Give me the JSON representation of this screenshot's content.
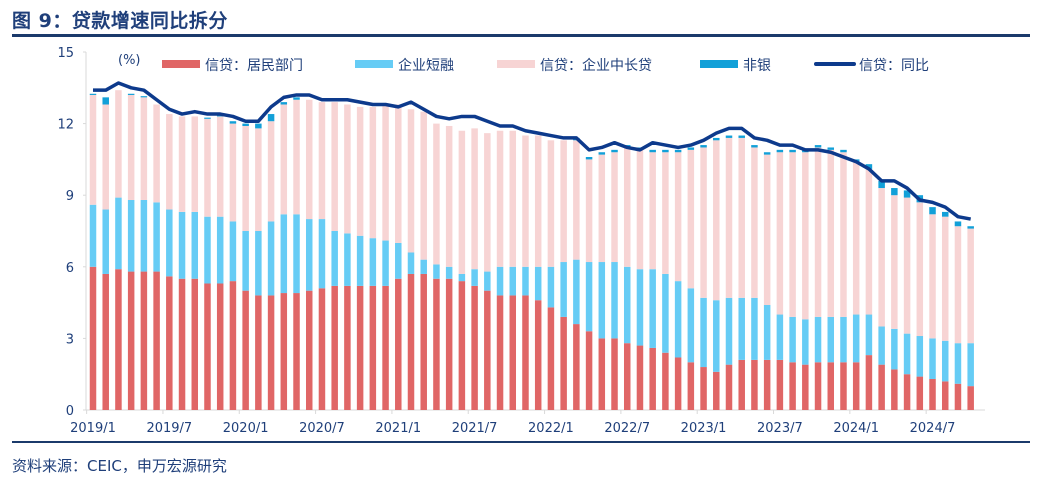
{
  "header": {
    "title": "图 9：贷款增速同比拆分"
  },
  "footer": {
    "source": "资料来源：CEIC，申万宏源研究"
  },
  "chart_data": {
    "type": "bar",
    "stacked": true,
    "title": "图 9：贷款增速同比拆分",
    "ylabel": "(%)",
    "xlabel": "",
    "ylim": [
      0,
      15
    ],
    "yticks": [
      0,
      3,
      6,
      9,
      12,
      15
    ],
    "xtick_labels": [
      "2019/1",
      "2019/7",
      "2020/1",
      "2020/7",
      "2021/1",
      "2021/7",
      "2022/1",
      "2022/7",
      "2023/1",
      "2023/7",
      "2024/1",
      "2024/7"
    ],
    "xtick_every": 6,
    "grid": false,
    "legend_position": "top",
    "colors": {
      "household": "#e06666",
      "short_term": "#66ccf5",
      "long_term": "#f7d4d4",
      "nonbank": "#12a0d8",
      "total": "#0d3a8c"
    },
    "legend": [
      {
        "key": "household",
        "label": "信贷：居民部门",
        "kind": "bar"
      },
      {
        "key": "short_term",
        "label": "企业短融",
        "kind": "bar"
      },
      {
        "key": "long_term",
        "label": "信贷：企业中长贷",
        "kind": "bar"
      },
      {
        "key": "nonbank",
        "label": "非银",
        "kind": "bar"
      },
      {
        "key": "total",
        "label": "信贷：同比",
        "kind": "line"
      }
    ],
    "x": [
      "2019/1",
      "2019/2",
      "2019/3",
      "2019/4",
      "2019/5",
      "2019/6",
      "2019/7",
      "2019/8",
      "2019/9",
      "2019/10",
      "2019/11",
      "2019/12",
      "2020/1",
      "2020/2",
      "2020/3",
      "2020/4",
      "2020/5",
      "2020/6",
      "2020/7",
      "2020/8",
      "2020/9",
      "2020/10",
      "2020/11",
      "2020/12",
      "2021/1",
      "2021/2",
      "2021/3",
      "2021/4",
      "2021/5",
      "2021/6",
      "2021/7",
      "2021/8",
      "2021/9",
      "2021/10",
      "2021/11",
      "2021/12",
      "2022/1",
      "2022/2",
      "2022/3",
      "2022/4",
      "2022/5",
      "2022/6",
      "2022/7",
      "2022/8",
      "2022/9",
      "2022/10",
      "2022/11",
      "2022/12",
      "2023/1",
      "2023/2",
      "2023/3",
      "2023/4",
      "2023/5",
      "2023/6",
      "2023/7",
      "2023/8",
      "2023/9",
      "2023/10",
      "2023/11",
      "2023/12",
      "2024/1",
      "2024/2",
      "2024/3",
      "2024/4",
      "2024/5",
      "2024/6",
      "2024/7",
      "2024/8",
      "2024/9",
      "2024/10"
    ],
    "series": [
      {
        "name": "信贷：居民部门",
        "key": "household",
        "values": [
          6.0,
          5.7,
          5.9,
          5.8,
          5.8,
          5.8,
          5.6,
          5.5,
          5.5,
          5.3,
          5.3,
          5.4,
          5.0,
          4.8,
          4.8,
          4.9,
          4.9,
          5.0,
          5.1,
          5.2,
          5.2,
          5.2,
          5.2,
          5.2,
          5.5,
          5.7,
          5.7,
          5.5,
          5.5,
          5.4,
          5.2,
          5.0,
          4.8,
          4.8,
          4.8,
          4.6,
          4.3,
          3.9,
          3.6,
          3.3,
          3.0,
          3.0,
          2.8,
          2.7,
          2.6,
          2.4,
          2.2,
          2.0,
          1.8,
          1.6,
          1.9,
          2.1,
          2.1,
          2.1,
          2.1,
          2.0,
          1.9,
          2.0,
          2.0,
          2.0,
          2.0,
          2.3,
          1.9,
          1.7,
          1.5,
          1.4,
          1.3,
          1.2,
          1.1,
          1.0
        ]
      },
      {
        "name": "企业短融",
        "key": "short_term",
        "values": [
          2.6,
          2.7,
          3.0,
          3.0,
          3.0,
          2.9,
          2.8,
          2.8,
          2.8,
          2.8,
          2.8,
          2.5,
          2.5,
          2.7,
          3.1,
          3.3,
          3.3,
          3.0,
          2.9,
          2.3,
          2.2,
          2.1,
          2.0,
          1.9,
          1.5,
          0.9,
          0.6,
          0.6,
          0.5,
          0.3,
          0.7,
          0.8,
          1.2,
          1.2,
          1.2,
          1.4,
          1.7,
          2.3,
          2.7,
          2.9,
          3.2,
          3.2,
          3.2,
          3.2,
          3.3,
          3.3,
          3.2,
          3.1,
          2.9,
          3.0,
          2.8,
          2.6,
          2.6,
          2.3,
          1.9,
          1.9,
          1.9,
          1.9,
          1.9,
          1.9,
          2.0,
          1.7,
          1.6,
          1.7,
          1.7,
          1.7,
          1.7,
          1.7,
          1.7,
          1.8
        ]
      },
      {
        "name": "信贷：企业中长贷",
        "key": "long_term",
        "values": [
          4.6,
          4.4,
          4.5,
          4.4,
          4.3,
          4.1,
          4.0,
          4.0,
          4.0,
          4.1,
          4.2,
          4.1,
          4.4,
          4.3,
          4.2,
          4.6,
          4.8,
          5.0,
          4.9,
          5.4,
          5.4,
          5.4,
          5.5,
          5.7,
          5.8,
          6.0,
          6.2,
          5.9,
          5.9,
          6.0,
          5.9,
          5.8,
          5.7,
          5.7,
          5.5,
          5.5,
          5.3,
          5.1,
          5.0,
          4.3,
          4.5,
          4.6,
          5.0,
          5.0,
          4.9,
          5.1,
          5.4,
          5.8,
          6.3,
          6.7,
          6.7,
          6.7,
          6.3,
          6.3,
          6.8,
          6.9,
          7.0,
          7.1,
          7.0,
          6.9,
          6.4,
          6.1,
          5.8,
          5.6,
          5.7,
          5.6,
          5.2,
          5.2,
          4.9,
          4.8
        ]
      },
      {
        "name": "非银",
        "key": "nonbank",
        "values": [
          0.05,
          0.3,
          0.0,
          0.05,
          0.05,
          0.0,
          0.0,
          0.0,
          0.0,
          0.05,
          0.05,
          0.1,
          0.1,
          0.2,
          0.3,
          0.1,
          0.1,
          0.0,
          0.0,
          0.0,
          0.0,
          0.0,
          0.0,
          0.0,
          0.0,
          0.0,
          0.0,
          0.0,
          0.0,
          0.0,
          0.0,
          0.0,
          0.0,
          0.0,
          0.0,
          0.0,
          0.0,
          0.0,
          0.1,
          0.1,
          0.1,
          0.1,
          0.1,
          0.1,
          0.1,
          0.1,
          0.1,
          0.1,
          0.1,
          0.1,
          0.1,
          0.1,
          0.1,
          0.1,
          0.1,
          0.1,
          0.1,
          0.1,
          0.1,
          0.1,
          0.1,
          0.2,
          0.3,
          0.3,
          0.3,
          0.3,
          0.3,
          0.2,
          0.2,
          0.1
        ]
      },
      {
        "name": "信贷：同比",
        "key": "total",
        "kind": "line",
        "values": [
          13.4,
          13.4,
          13.7,
          13.5,
          13.4,
          13.0,
          12.6,
          12.4,
          12.5,
          12.4,
          12.4,
          12.3,
          12.1,
          12.1,
          12.7,
          13.1,
          13.2,
          13.2,
          13.0,
          13.0,
          13.0,
          12.9,
          12.8,
          12.8,
          12.7,
          12.9,
          12.6,
          12.3,
          12.2,
          12.3,
          12.3,
          12.1,
          11.9,
          11.9,
          11.7,
          11.6,
          11.5,
          11.4,
          11.4,
          10.9,
          11.0,
          11.2,
          11.0,
          10.9,
          11.2,
          11.1,
          11.0,
          11.1,
          11.3,
          11.6,
          11.8,
          11.8,
          11.4,
          11.3,
          11.1,
          11.1,
          10.9,
          10.9,
          10.8,
          10.6,
          10.4,
          10.1,
          9.6,
          9.6,
          9.3,
          8.8,
          8.7,
          8.5,
          8.1,
          8.0
        ]
      }
    ]
  }
}
